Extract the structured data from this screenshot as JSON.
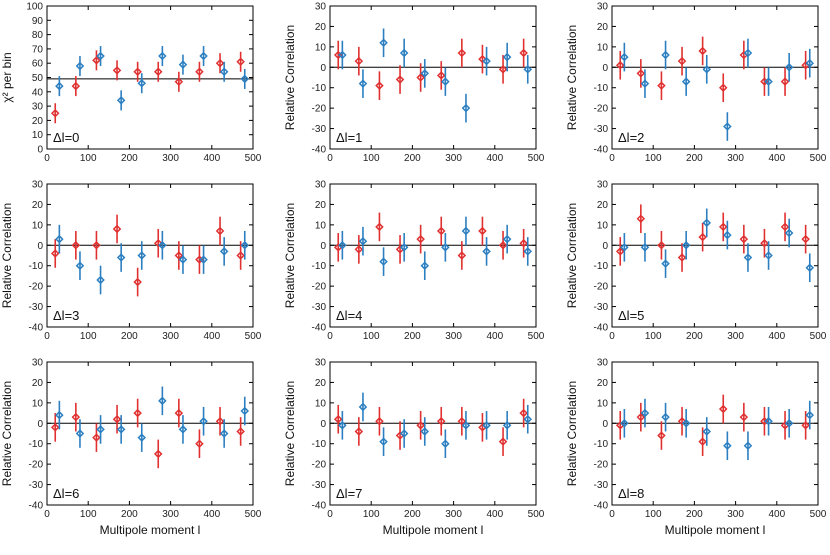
{
  "colors": {
    "series_a": "#e03030",
    "series_b": "#2b7fc1",
    "axis": "#000000"
  },
  "chart_data": [
    {
      "type": "scatter",
      "delta_label": "Δl=0",
      "ylabel": "χ² per bin",
      "xlabel": "",
      "ylim": [
        0,
        100
      ],
      "yticks": [
        0,
        10,
        20,
        30,
        40,
        50,
        60,
        70,
        80,
        90,
        100
      ],
      "xlim": [
        0,
        500
      ],
      "xticks": [
        0,
        100,
        200,
        300,
        400,
        500
      ],
      "ref_line": 49,
      "series": [
        {
          "color": "series_a",
          "x": [
            20,
            70,
            120,
            170,
            220,
            270,
            320,
            370,
            420,
            470
          ],
          "y": [
            25,
            44,
            62,
            55,
            54,
            54,
            47,
            54,
            60,
            61
          ],
          "err": [
            7,
            7,
            7,
            7,
            7,
            7,
            7,
            7,
            7,
            7
          ]
        },
        {
          "color": "series_b",
          "x": [
            30,
            80,
            130,
            180,
            230,
            280,
            330,
            380,
            430,
            480
          ],
          "y": [
            44,
            58,
            65,
            34,
            46,
            65,
            59,
            65,
            54,
            49
          ],
          "err": [
            7,
            7,
            7,
            7,
            7,
            7,
            7,
            7,
            7,
            7
          ]
        }
      ]
    },
    {
      "type": "scatter",
      "delta_label": "Δl=1",
      "ylabel": "Relative Correlation",
      "xlabel": "",
      "ylim": [
        -40,
        30
      ],
      "yticks": [
        -40,
        -30,
        -20,
        -10,
        0,
        10,
        20,
        30
      ],
      "xlim": [
        0,
        500
      ],
      "xticks": [
        0,
        100,
        200,
        300,
        400,
        500
      ],
      "ref_line": 0,
      "series": [
        {
          "color": "series_a",
          "x": [
            20,
            70,
            120,
            170,
            220,
            270,
            320,
            370,
            420,
            470
          ],
          "y": [
            6,
            3,
            -9,
            -6,
            -5,
            -4,
            7,
            4,
            -1,
            7
          ],
          "err": [
            7,
            7,
            7,
            7,
            7,
            7,
            7,
            7,
            7,
            7
          ]
        },
        {
          "color": "series_b",
          "x": [
            30,
            80,
            130,
            180,
            230,
            280,
            330,
            380,
            430,
            480
          ],
          "y": [
            6,
            -8,
            12,
            7,
            -3,
            -7,
            -20,
            3,
            5,
            -1
          ],
          "err": [
            7,
            7,
            7,
            7,
            7,
            7,
            7,
            7,
            7,
            7
          ]
        }
      ]
    },
    {
      "type": "scatter",
      "delta_label": "Δl=2",
      "ylabel": "Relative Correlation",
      "xlabel": "",
      "ylim": [
        -40,
        30
      ],
      "yticks": [
        -40,
        -30,
        -20,
        -10,
        0,
        10,
        20,
        30
      ],
      "xlim": [
        0,
        500
      ],
      "xticks": [
        0,
        100,
        200,
        300,
        400,
        500
      ],
      "ref_line": 0,
      "series": [
        {
          "color": "series_a",
          "x": [
            20,
            70,
            120,
            170,
            220,
            270,
            320,
            370,
            420,
            470
          ],
          "y": [
            1,
            -3,
            -9,
            3,
            8,
            -10,
            6,
            -7,
            -7,
            1
          ],
          "err": [
            7,
            7,
            7,
            7,
            7,
            7,
            7,
            7,
            7,
            7
          ]
        },
        {
          "color": "series_b",
          "x": [
            30,
            80,
            130,
            180,
            230,
            280,
            330,
            380,
            430,
            480
          ],
          "y": [
            5,
            -8,
            6,
            -7,
            -1,
            -29,
            7,
            -7,
            0,
            2
          ],
          "err": [
            7,
            7,
            7,
            7,
            7,
            7,
            7,
            7,
            7,
            7
          ]
        }
      ]
    },
    {
      "type": "scatter",
      "delta_label": "Δl=3",
      "ylabel": "Relative Correlation",
      "xlabel": "",
      "ylim": [
        -40,
        30
      ],
      "yticks": [
        -40,
        -30,
        -20,
        -10,
        0,
        10,
        20,
        30
      ],
      "xlim": [
        0,
        500
      ],
      "xticks": [
        0,
        100,
        200,
        300,
        400,
        500
      ],
      "ref_line": 0,
      "series": [
        {
          "color": "series_a",
          "x": [
            20,
            70,
            120,
            170,
            220,
            270,
            320,
            370,
            420,
            470
          ],
          "y": [
            -4,
            0,
            0,
            8,
            -18,
            1,
            -5,
            -7,
            7,
            -5
          ],
          "err": [
            7,
            7,
            7,
            7,
            7,
            7,
            7,
            7,
            7,
            7
          ]
        },
        {
          "color": "series_b",
          "x": [
            30,
            80,
            130,
            180,
            230,
            280,
            330,
            380,
            430,
            480
          ],
          "y": [
            3,
            -10,
            -17,
            -6,
            -5,
            0,
            -7,
            -7,
            -3,
            0
          ],
          "err": [
            7,
            7,
            7,
            7,
            7,
            7,
            7,
            7,
            7,
            7
          ]
        }
      ]
    },
    {
      "type": "scatter",
      "delta_label": "Δl=4",
      "ylabel": "Relative Correlation",
      "xlabel": "",
      "ylim": [
        -40,
        30
      ],
      "yticks": [
        -40,
        -30,
        -20,
        -10,
        0,
        10,
        20,
        30
      ],
      "xlim": [
        0,
        500
      ],
      "xticks": [
        0,
        100,
        200,
        300,
        400,
        500
      ],
      "ref_line": 0,
      "series": [
        {
          "color": "series_a",
          "x": [
            20,
            70,
            120,
            170,
            220,
            270,
            320,
            370,
            420,
            470
          ],
          "y": [
            -1,
            -2,
            9,
            -2,
            3,
            7,
            -5,
            7,
            0,
            1
          ],
          "err": [
            7,
            7,
            7,
            7,
            7,
            7,
            7,
            7,
            7,
            7
          ]
        },
        {
          "color": "series_b",
          "x": [
            30,
            80,
            130,
            180,
            230,
            280,
            330,
            380,
            430,
            480
          ],
          "y": [
            0,
            2,
            -8,
            -1,
            -10,
            -1,
            7,
            -3,
            3,
            -3
          ],
          "err": [
            7,
            7,
            7,
            7,
            7,
            7,
            7,
            7,
            7,
            7
          ]
        }
      ]
    },
    {
      "type": "scatter",
      "delta_label": "Δl=5",
      "ylabel": "Relative Correlation",
      "xlabel": "",
      "ylim": [
        -40,
        30
      ],
      "yticks": [
        -40,
        -30,
        -20,
        -10,
        0,
        10,
        20,
        30
      ],
      "xlim": [
        0,
        500
      ],
      "xticks": [
        0,
        100,
        200,
        300,
        400,
        500
      ],
      "ref_line": 0,
      "series": [
        {
          "color": "series_a",
          "x": [
            20,
            70,
            120,
            170,
            220,
            270,
            320,
            370,
            420,
            470
          ],
          "y": [
            -3,
            13,
            0,
            -6,
            4,
            9,
            3,
            1,
            9,
            3
          ],
          "err": [
            7,
            7,
            7,
            7,
            7,
            7,
            7,
            7,
            7,
            7
          ]
        },
        {
          "color": "series_b",
          "x": [
            30,
            80,
            130,
            180,
            230,
            280,
            330,
            380,
            430,
            480
          ],
          "y": [
            -1,
            -1,
            -9,
            0,
            11,
            5,
            -6,
            -5,
            6,
            -11
          ],
          "err": [
            7,
            7,
            7,
            7,
            7,
            7,
            7,
            7,
            7,
            7
          ]
        }
      ]
    },
    {
      "type": "scatter",
      "delta_label": "Δl=6",
      "ylabel": "Relative Correlation",
      "xlabel": "Multipole moment l",
      "ylim": [
        -40,
        30
      ],
      "yticks": [
        -40,
        -30,
        -20,
        -10,
        0,
        10,
        20,
        30
      ],
      "xlim": [
        0,
        500
      ],
      "xticks": [
        0,
        100,
        200,
        300,
        400,
        500
      ],
      "ref_line": 0,
      "series": [
        {
          "color": "series_a",
          "x": [
            20,
            70,
            120,
            170,
            220,
            270,
            320,
            370,
            420,
            470
          ],
          "y": [
            -2,
            3,
            -7,
            2,
            5,
            -15,
            5,
            -10,
            1,
            -4
          ],
          "err": [
            7,
            7,
            7,
            7,
            7,
            7,
            7,
            7,
            7,
            7
          ]
        },
        {
          "color": "series_b",
          "x": [
            30,
            80,
            130,
            180,
            230,
            280,
            330,
            380,
            430,
            480
          ],
          "y": [
            4,
            -5,
            -3,
            -3,
            -7,
            11,
            -3,
            1,
            -5,
            6
          ],
          "err": [
            7,
            7,
            7,
            7,
            7,
            7,
            7,
            7,
            7,
            7
          ]
        }
      ]
    },
    {
      "type": "scatter",
      "delta_label": "Δl=7",
      "ylabel": "Relative Correlation",
      "xlabel": "Multipole moment l",
      "ylim": [
        -40,
        30
      ],
      "yticks": [
        -40,
        -30,
        -20,
        -10,
        0,
        10,
        20,
        30
      ],
      "xlim": [
        0,
        500
      ],
      "xticks": [
        0,
        100,
        200,
        300,
        400,
        500
      ],
      "ref_line": 0,
      "series": [
        {
          "color": "series_a",
          "x": [
            20,
            70,
            120,
            170,
            220,
            270,
            320,
            370,
            420,
            470
          ],
          "y": [
            2,
            -4,
            1,
            -6,
            -1,
            1,
            1,
            -2,
            -9,
            5
          ],
          "err": [
            7,
            7,
            7,
            7,
            7,
            7,
            7,
            7,
            7,
            7
          ]
        },
        {
          "color": "series_b",
          "x": [
            30,
            80,
            130,
            180,
            230,
            280,
            330,
            380,
            430,
            480
          ],
          "y": [
            -1,
            8,
            -9,
            -5,
            -4,
            -10,
            -1,
            -1,
            -1,
            2
          ],
          "err": [
            7,
            7,
            7,
            7,
            7,
            7,
            7,
            7,
            7,
            7
          ]
        }
      ]
    },
    {
      "type": "scatter",
      "delta_label": "Δl=8",
      "ylabel": "Relative Correlation",
      "xlabel": "Multipole moment l",
      "ylim": [
        -40,
        30
      ],
      "yticks": [
        -40,
        -30,
        -20,
        -10,
        0,
        10,
        20,
        30
      ],
      "xlim": [
        0,
        500
      ],
      "xticks": [
        0,
        100,
        200,
        300,
        400,
        500
      ],
      "ref_line": 0,
      "series": [
        {
          "color": "series_a",
          "x": [
            20,
            70,
            120,
            170,
            220,
            270,
            320,
            370,
            420,
            470
          ],
          "y": [
            -1,
            3,
            -6,
            1,
            -9,
            7,
            3,
            1,
            -1,
            -1
          ],
          "err": [
            7,
            7,
            7,
            7,
            7,
            7,
            7,
            7,
            7,
            7
          ]
        },
        {
          "color": "series_b",
          "x": [
            30,
            80,
            130,
            180,
            230,
            280,
            330,
            380,
            430,
            480
          ],
          "y": [
            0,
            5,
            3,
            0,
            -4,
            -11,
            -11,
            1,
            0,
            4
          ],
          "err": [
            7,
            7,
            7,
            7,
            7,
            7,
            7,
            7,
            7,
            7
          ]
        }
      ]
    }
  ]
}
